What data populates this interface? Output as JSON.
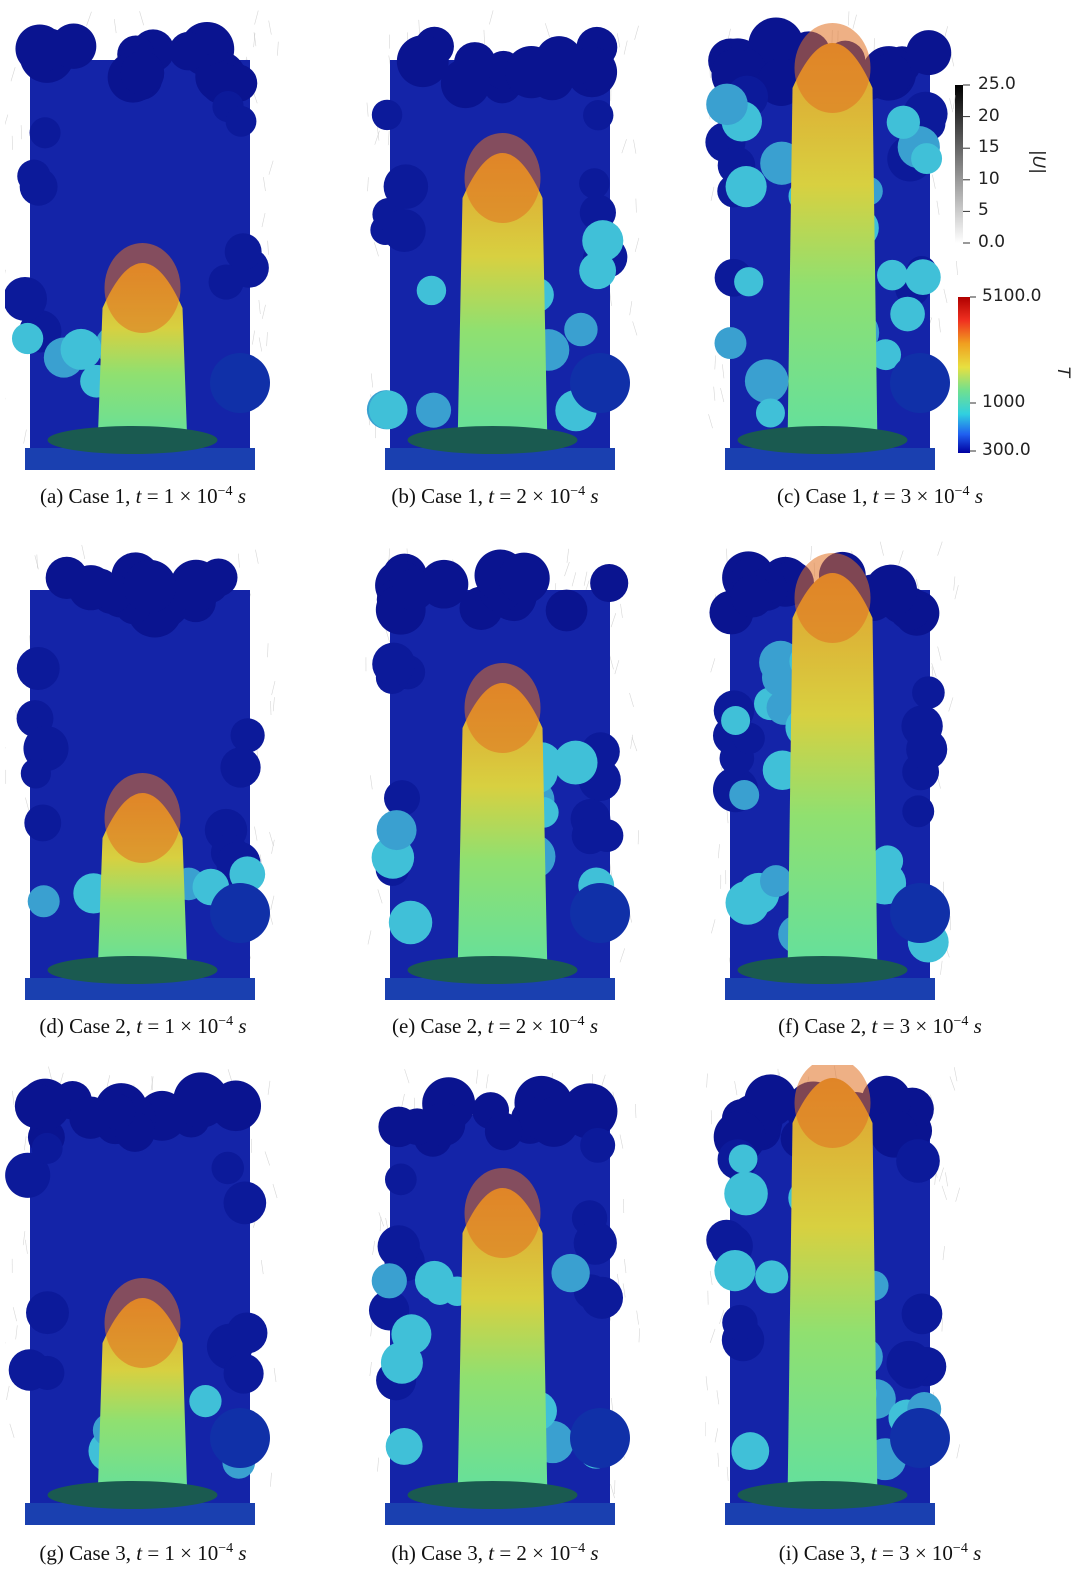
{
  "panels": [
    {
      "label": "(a) Case 1,",
      "var": "t",
      "eq": "= 1 × 10",
      "exp": "−4",
      "unit": "s"
    },
    {
      "label": "(b) Case 1,",
      "var": "t",
      "eq": "= 2 × 10",
      "exp": "−4",
      "unit": "s"
    },
    {
      "label": "(c) Case 1,",
      "var": "t",
      "eq": "= 3 × 10",
      "exp": "−4",
      "unit": "s"
    },
    {
      "label": "(d) Case 2,",
      "var": "t",
      "eq": "= 1 × 10",
      "exp": "−4",
      "unit": "s"
    },
    {
      "label": "(e) Case 2,",
      "var": "t",
      "eq": "= 2 × 10",
      "exp": "−4",
      "unit": "s"
    },
    {
      "label": "(f) Case 2,",
      "var": "t",
      "eq": "= 3 × 10",
      "exp": "−4",
      "unit": "s"
    },
    {
      "label": "(g) Case 3,",
      "var": "t",
      "eq": "= 1 × 10",
      "exp": "−4",
      "unit": "s"
    },
    {
      "label": "(h) Case 3,",
      "var": "t",
      "eq": "= 2 × 10",
      "exp": "−4",
      "unit": "s"
    },
    {
      "label": "(i) Case 3,",
      "var": "t",
      "eq": "= 3 × 10",
      "exp": "−4",
      "unit": "s"
    }
  ],
  "velocity_colorbar": {
    "title": "|U|",
    "ticks": [
      "25.0",
      "20",
      "15",
      "10",
      "5",
      "0.0"
    ]
  },
  "temperature_colorbar": {
    "title": "T",
    "ticks": [
      "5100.0",
      "1000",
      "300.0"
    ]
  }
}
